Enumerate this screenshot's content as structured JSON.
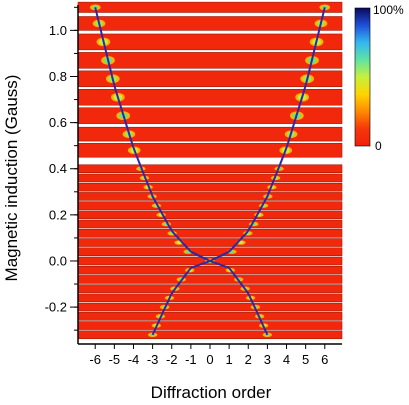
{
  "chart_data": {
    "type": "heatmap",
    "xlabel": "Diffraction order",
    "ylabel": "Magnetic induction (Gauss)",
    "x_ticks": [
      -6,
      -5,
      -4,
      -3,
      -2,
      -1,
      0,
      1,
      2,
      3,
      4,
      5,
      6
    ],
    "y_ticks": [
      -0.2,
      0.0,
      0.2,
      0.4,
      0.6,
      0.8,
      1.0
    ],
    "xlim": [
      -6.9,
      6.9
    ],
    "ylim": [
      -0.36,
      1.11
    ],
    "colorbar": {
      "ticks": [
        "100%",
        "0"
      ],
      "colors": [
        "#0a0a5a",
        "#1f4fd8",
        "#34b7f0",
        "#5fe3a3",
        "#c6f03c",
        "#ffd400",
        "#ff8a00",
        "#f5360a",
        "#f0200a"
      ]
    },
    "rows_B": [
      -0.32,
      -0.28,
      -0.24,
      -0.2,
      -0.16,
      -0.12,
      -0.08,
      -0.04,
      0.0,
      0.04,
      0.08,
      0.12,
      0.16,
      0.2,
      0.24,
      0.28,
      0.32,
      0.36,
      0.4,
      0.48,
      0.55,
      0.63,
      0.71,
      0.79,
      0.87,
      0.95,
      1.03,
      1.1
    ],
    "fit_curves": {
      "color": "#2a2aa8",
      "upper_branch": {
        "x": [
          -6,
          -5,
          -4,
          -3,
          -2,
          -1,
          0,
          1,
          2,
          3,
          4,
          5,
          6
        ],
        "y": [
          1.1,
          0.76,
          0.49,
          0.28,
          0.13,
          0.04,
          0.0,
          0.04,
          0.13,
          0.28,
          0.49,
          0.76,
          1.1
        ]
      },
      "lower_branch": {
        "x": [
          -3,
          -2,
          -1,
          0,
          1,
          2,
          3
        ],
        "y": [
          -0.32,
          -0.14,
          -0.03,
          0.0,
          -0.03,
          -0.14,
          -0.32
        ]
      }
    }
  }
}
